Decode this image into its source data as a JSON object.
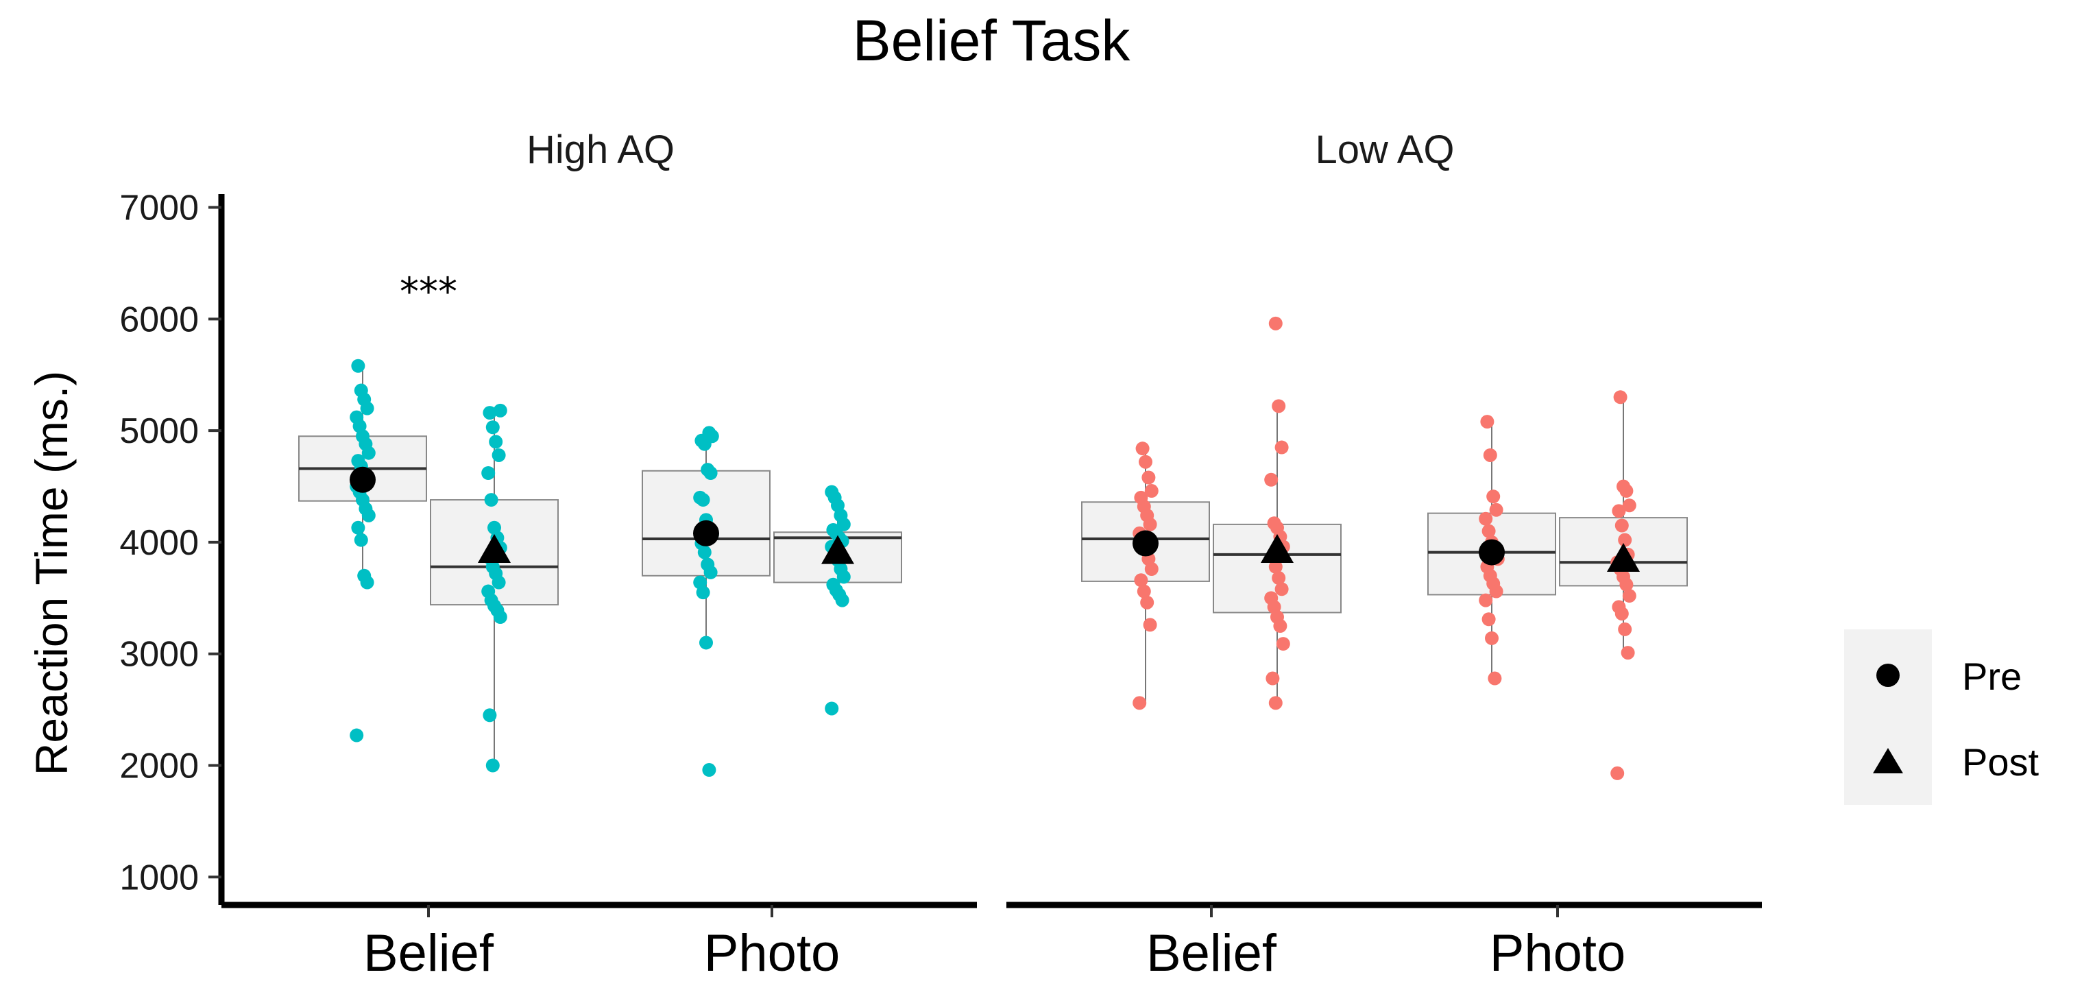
{
  "chart_data": {
    "type": "box",
    "title": "Belief Task",
    "ylabel": "Reaction Time (ms.)",
    "xlabel": "",
    "ylim": [
      750,
      7200
    ],
    "yticks": [
      1000,
      2000,
      3000,
      4000,
      5000,
      6000,
      7000
    ],
    "categories": [
      "Belief",
      "Photo"
    ],
    "legend": {
      "position": "right",
      "entries": [
        {
          "name": "Pre",
          "shape": "circle"
        },
        {
          "name": "Post",
          "shape": "triangle"
        }
      ]
    },
    "colors": {
      "high": "#00bfc4",
      "low": "#f8766d",
      "box_fill": "#f2f2f2",
      "box_stroke": "#888888",
      "legend_bg": "#f2f2f2"
    },
    "facets": [
      {
        "label": "High AQ",
        "color": "#00bfc4",
        "significance": [
          {
            "category": "Belief",
            "label": "***",
            "y": 6250
          }
        ],
        "groups": [
          {
            "category": "Belief",
            "series": "Pre",
            "box": {
              "q1": 4370,
              "median": 4660,
              "q3": 4950,
              "min": 3620,
              "max": 5580
            },
            "mean": 4560,
            "points": [
              2270,
              3640,
              3700,
              4020,
              4130,
              4240,
              4300,
              4380,
              4450,
              4500,
              4560,
              4620,
              4680,
              4730,
              4800,
              4880,
              4950,
              5040,
              5120,
              5200,
              5280,
              5360,
              5580
            ]
          },
          {
            "category": "Belief",
            "series": "Post",
            "box": {
              "q1": 3440,
              "median": 3780,
              "q3": 4380,
              "min": 2000,
              "max": 5180
            },
            "mean": 3920,
            "points": [
              2000,
              2450,
              3330,
              3390,
              3430,
              3480,
              3560,
              3640,
              3720,
              3780,
              3860,
              3950,
              4040,
              4130,
              4380,
              4620,
              4780,
              4900,
              5030,
              5160,
              5180
            ]
          },
          {
            "category": "Photo",
            "series": "Pre",
            "box": {
              "q1": 3700,
              "median": 4030,
              "q3": 4640,
              "min": 3100,
              "max": 4980
            },
            "mean": 4080,
            "points": [
              1960,
              3100,
              3550,
              3640,
              3730,
              3800,
              3910,
              3990,
              4070,
              4120,
              4200,
              4380,
              4400,
              4620,
              4650,
              4880,
              4910,
              4950,
              4980
            ]
          },
          {
            "category": "Photo",
            "series": "Post",
            "box": {
              "q1": 3640,
              "median": 4040,
              "q3": 4090,
              "min": 3500,
              "max": 4450
            },
            "mean": 3910,
            "points": [
              2510,
              3480,
              3530,
              3570,
              3620,
              3690,
              3760,
              3840,
              3900,
              3960,
              4010,
              4040,
              4080,
              4110,
              4160,
              4240,
              4330,
              4400,
              4450
            ]
          }
        ]
      },
      {
        "label": "Low AQ",
        "color": "#f8766d",
        "significance": [],
        "groups": [
          {
            "category": "Belief",
            "series": "Pre",
            "box": {
              "q1": 3650,
              "median": 4030,
              "q3": 4360,
              "min": 2560,
              "max": 4840
            },
            "mean": 3990,
            "points": [
              2560,
              3260,
              3460,
              3560,
              3660,
              3760,
              3850,
              3930,
              4010,
              4080,
              4160,
              4240,
              4320,
              4400,
              4460,
              4580,
              4720,
              4840
            ]
          },
          {
            "category": "Belief",
            "series": "Post",
            "box": {
              "q1": 3370,
              "median": 3890,
              "q3": 4160,
              "min": 2560,
              "max": 5220
            },
            "mean": 3920,
            "points": [
              2560,
              2780,
              3090,
              3250,
              3330,
              3420,
              3500,
              3580,
              3680,
              3780,
              3870,
              3960,
              4050,
              4130,
              4170,
              4560,
              4850,
              5220,
              5960
            ]
          },
          {
            "category": "Photo",
            "series": "Pre",
            "box": {
              "q1": 3530,
              "median": 3910,
              "q3": 4260,
              "min": 2780,
              "max": 5080
            },
            "mean": 3910,
            "points": [
              2780,
              3140,
              3310,
              3480,
              3560,
              3630,
              3700,
              3780,
              3850,
              3930,
              4000,
              4100,
              4210,
              4290,
              4410,
              4780,
              5080
            ]
          },
          {
            "category": "Photo",
            "series": "Post",
            "box": {
              "q1": 3610,
              "median": 3820,
              "q3": 4220,
              "min": 3010,
              "max": 5300
            },
            "mean": 3840,
            "points": [
              1930,
              3010,
              3220,
              3360,
              3420,
              3520,
              3620,
              3690,
              3760,
              3820,
              3890,
              4020,
              4150,
              4280,
              4330,
              4460,
              4500,
              5300
            ]
          }
        ]
      }
    ]
  }
}
